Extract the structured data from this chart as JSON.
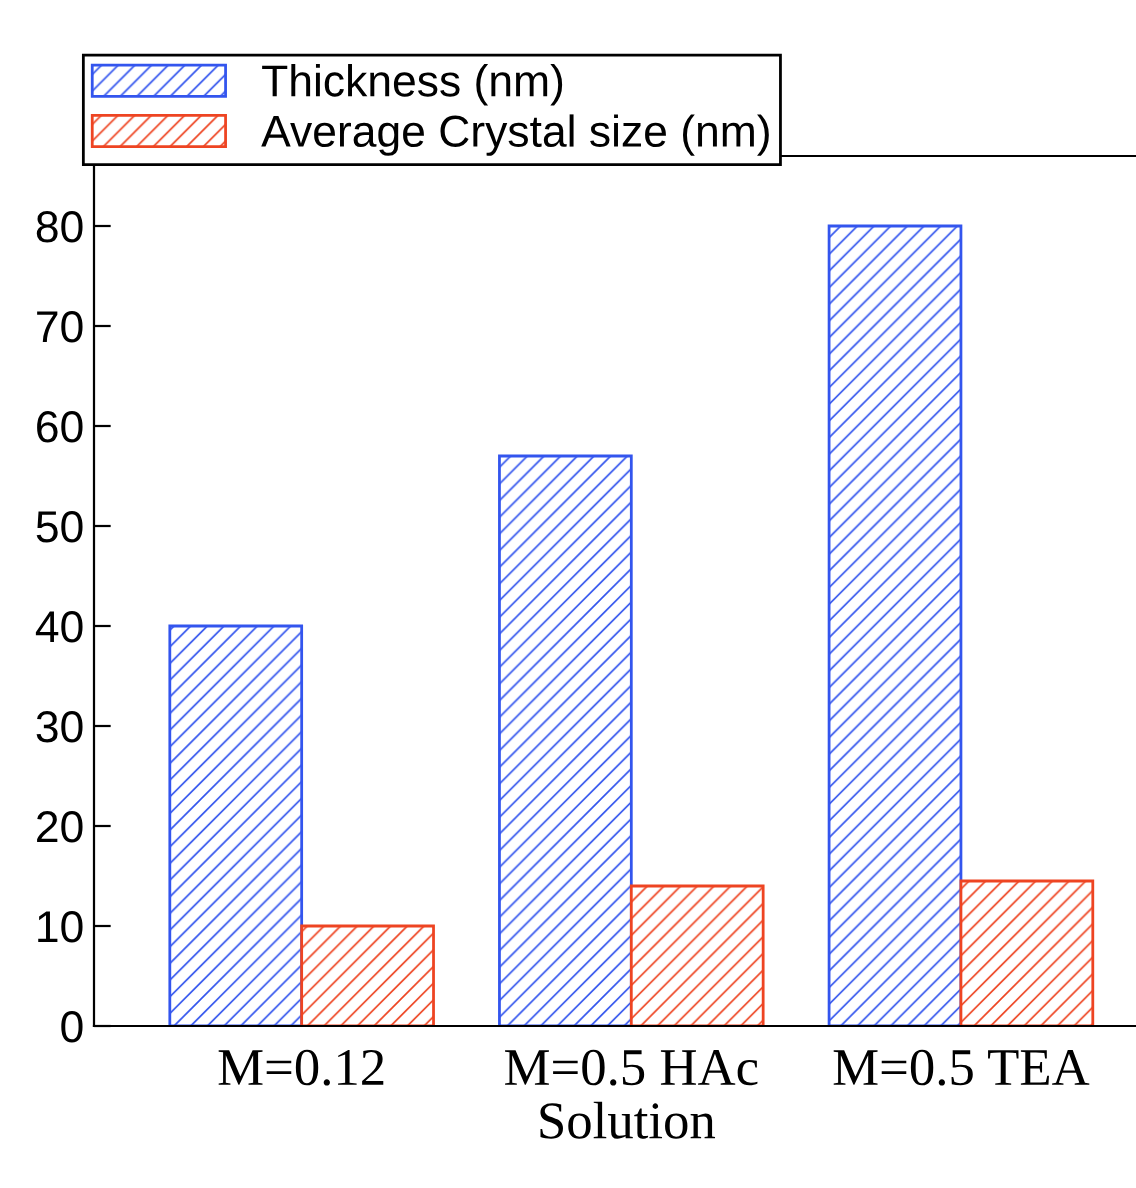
{
  "chart_data": {
    "type": "bar",
    "xlabel": "Solution",
    "categories": [
      "M=0.12",
      "M=0.5 HAc",
      "M=0.5 TEA"
    ],
    "series": [
      {
        "name": "Thickness (nm)",
        "color": "#3355ee",
        "values": [
          40,
          57,
          80
        ]
      },
      {
        "name": "Average Crystal size (nm)",
        "color": "#ee4422",
        "values": [
          10,
          14,
          14.5
        ]
      }
    ],
    "ylim": [
      0,
      87
    ],
    "yticks": [
      0,
      10,
      20,
      30,
      40,
      50,
      60,
      70,
      80
    ],
    "grid": false,
    "legend": "top left"
  }
}
